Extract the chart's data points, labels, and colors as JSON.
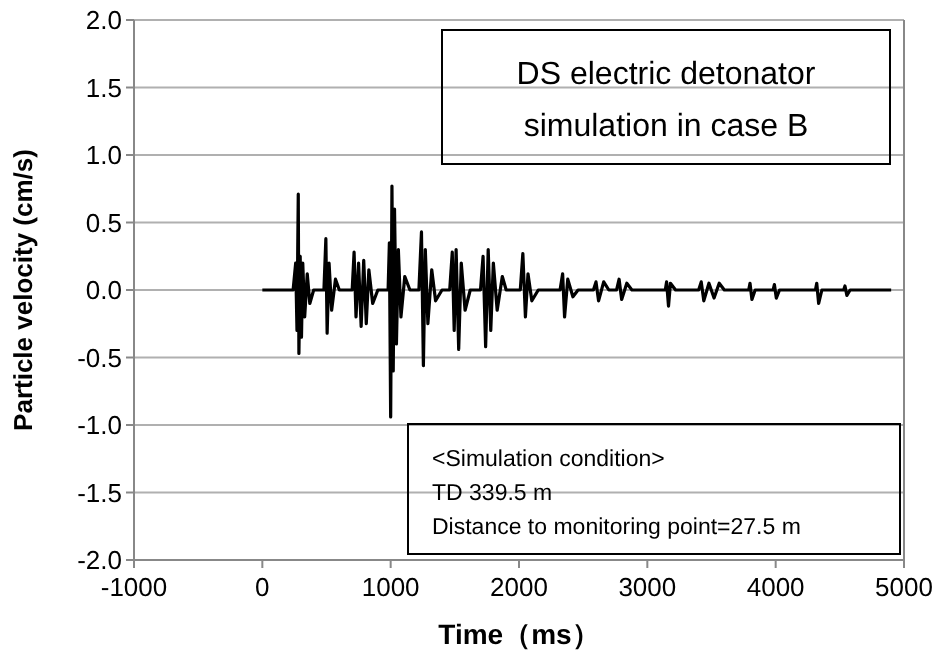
{
  "chart_data": {
    "type": "line",
    "title": "DS electric detonator simulation in case B",
    "xlabel": "Time（ms）",
    "ylabel": "Particle velocity (cm/s)",
    "annotations": [
      "<Simulation condition>",
      "TD 339.5 m",
      "Distance to monitoring point=27.5 m"
    ],
    "xlim": [
      -1000,
      5000
    ],
    "xticks": [
      -1000,
      0,
      1000,
      2000,
      3000,
      4000,
      5000
    ],
    "ylim": [
      -2,
      2
    ],
    "yticks": [
      {
        "value": -2,
        "label": "-2.0"
      },
      {
        "value": -1.5,
        "label": "-1.5"
      },
      {
        "value": -1,
        "label": "-1.0"
      },
      {
        "value": -0.5,
        "label": "-0.5"
      },
      {
        "value": 0,
        "label": "0.0"
      },
      {
        "value": 0.5,
        "label": "0.5"
      },
      {
        "value": 1,
        "label": "1.0"
      },
      {
        "value": 1.5,
        "label": "1.5"
      },
      {
        "value": 2,
        "label": "2.0"
      }
    ],
    "grid": "y",
    "marker": "none",
    "line_style": "solid",
    "x": [
      0,
      240,
      260,
      270,
      280,
      285,
      295,
      305,
      315,
      330,
      350,
      370,
      400,
      480,
      495,
      505,
      520,
      540,
      570,
      600,
      700,
      715,
      730,
      750,
      770,
      790,
      810,
      830,
      860,
      900,
      980,
      990,
      1000,
      1010,
      1020,
      1030,
      1045,
      1060,
      1080,
      1110,
      1150,
      1220,
      1240,
      1255,
      1270,
      1290,
      1320,
      1350,
      1400,
      1460,
      1480,
      1495,
      1510,
      1530,
      1550,
      1580,
      1620,
      1700,
      1720,
      1740,
      1760,
      1780,
      1800,
      1830,
      1870,
      1900,
      2010,
      2030,
      2050,
      2070,
      2100,
      2150,
      2320,
      2340,
      2355,
      2380,
      2420,
      2460,
      2580,
      2600,
      2620,
      2660,
      2700,
      2760,
      2780,
      2800,
      2840,
      2880,
      3140,
      3150,
      3165,
      3180,
      3220,
      3400,
      3420,
      3440,
      3480,
      3520,
      3560,
      3600,
      3790,
      3800,
      3815,
      3840,
      3980,
      3990,
      4005,
      4030,
      4310,
      4320,
      4335,
      4360,
      4530,
      4540,
      4555,
      4580,
      4900
    ],
    "series": [
      {
        "color": "#000000",
        "values": [
          0,
          0,
          0.2,
          -0.3,
          0.71,
          -0.47,
          0.25,
          -0.35,
          0.2,
          -0.2,
          0.12,
          -0.1,
          0,
          0,
          0.38,
          -0.32,
          0.2,
          -0.15,
          0.08,
          0,
          0,
          0.28,
          -0.2,
          0.2,
          -0.27,
          0.22,
          -0.25,
          0.15,
          -0.1,
          0,
          0,
          0.35,
          -0.94,
          0.77,
          -0.6,
          0.6,
          -0.4,
          0.3,
          -0.2,
          0.1,
          0,
          0,
          0.43,
          -0.56,
          0.3,
          -0.25,
          0.15,
          -0.08,
          0,
          0,
          0.28,
          -0.3,
          0.3,
          -0.44,
          0.2,
          -0.15,
          0,
          0,
          0.25,
          -0.42,
          0.3,
          -0.3,
          0.2,
          -0.15,
          0.1,
          0,
          0,
          0.27,
          -0.2,
          0.12,
          -0.08,
          0,
          0,
          0.12,
          -0.2,
          0.08,
          -0.05,
          0,
          0,
          0.06,
          -0.08,
          0.06,
          0,
          0,
          0.08,
          -0.07,
          0.05,
          0,
          0,
          0.06,
          -0.12,
          0.05,
          0,
          0,
          0.06,
          -0.08,
          0.05,
          -0.06,
          0.05,
          0,
          0,
          0.05,
          -0.07,
          0,
          0,
          0.04,
          -0.06,
          0,
          0,
          0.05,
          -0.1,
          0,
          0,
          0.03,
          -0.04,
          0,
          0
        ]
      }
    ]
  }
}
